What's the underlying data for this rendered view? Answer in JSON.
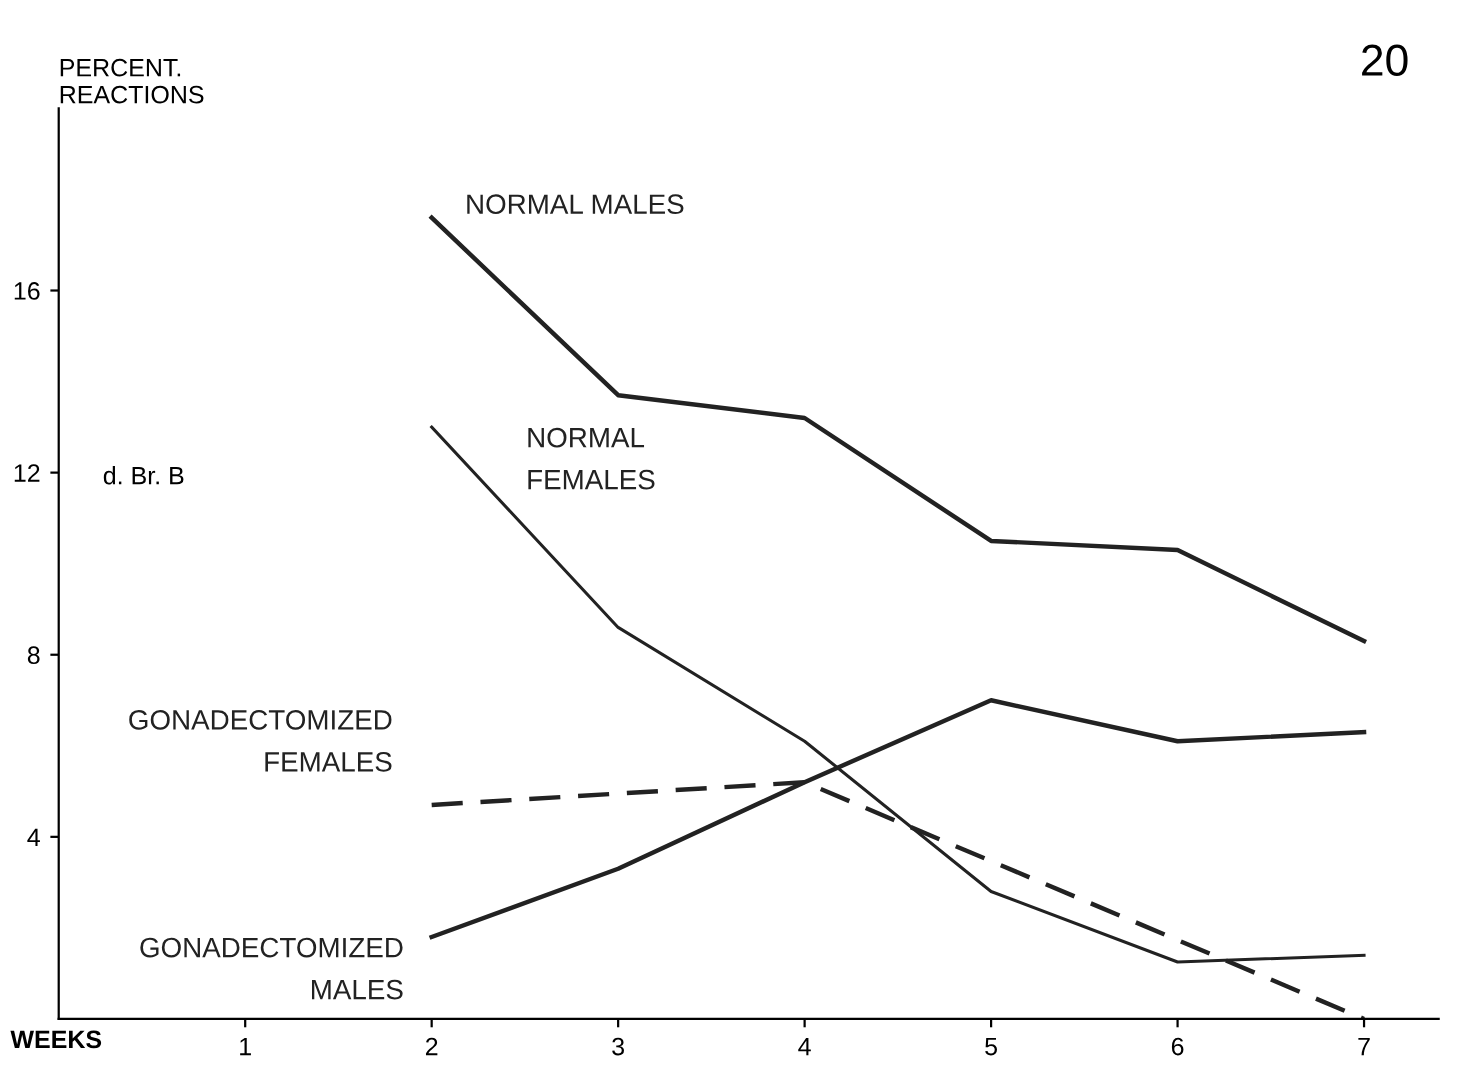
{
  "chart_data": {
    "type": "line",
    "ylabel": "PERCENT.\nREACTIONS",
    "xlabel": "WEEKS",
    "annotations": [
      "20",
      "d. Br. B"
    ],
    "xlim": [
      0,
      7.4
    ],
    "ylim": [
      0,
      20
    ],
    "xticks": [
      1,
      2,
      3,
      4,
      5,
      6,
      7
    ],
    "yticks": [
      4,
      8,
      12,
      16
    ],
    "grid": false,
    "legend": false,
    "marker": "none",
    "series": [
      {
        "name": "NORMAL MALES",
        "color": "#222222",
        "line_style": "solid",
        "x": [
          2,
          3,
          4,
          5,
          6,
          7
        ],
        "values": [
          17.6,
          13.7,
          13.2,
          10.5,
          10.3,
          8.3
        ]
      },
      {
        "name": "NORMAL\nFEMALES",
        "color": "#222222",
        "line_style": "solid",
        "x": [
          2,
          3,
          4,
          5,
          6,
          7
        ],
        "values": [
          13.0,
          8.6,
          6.1,
          2.8,
          1.25,
          1.4
        ]
      },
      {
        "name": "GONADECTOMIZED\nFEMALES",
        "color": "#222222",
        "line_style": "dashed",
        "x": [
          2,
          4,
          7
        ],
        "values": [
          4.7,
          5.2,
          0
        ]
      },
      {
        "name": "GONADECTOMIZED\nMALES",
        "color": "#222222",
        "line_style": "solid",
        "x": [
          2,
          3,
          4,
          5,
          6,
          7
        ],
        "values": [
          1.8,
          3.3,
          5.2,
          7.0,
          6.1,
          6.3
        ]
      }
    ]
  }
}
